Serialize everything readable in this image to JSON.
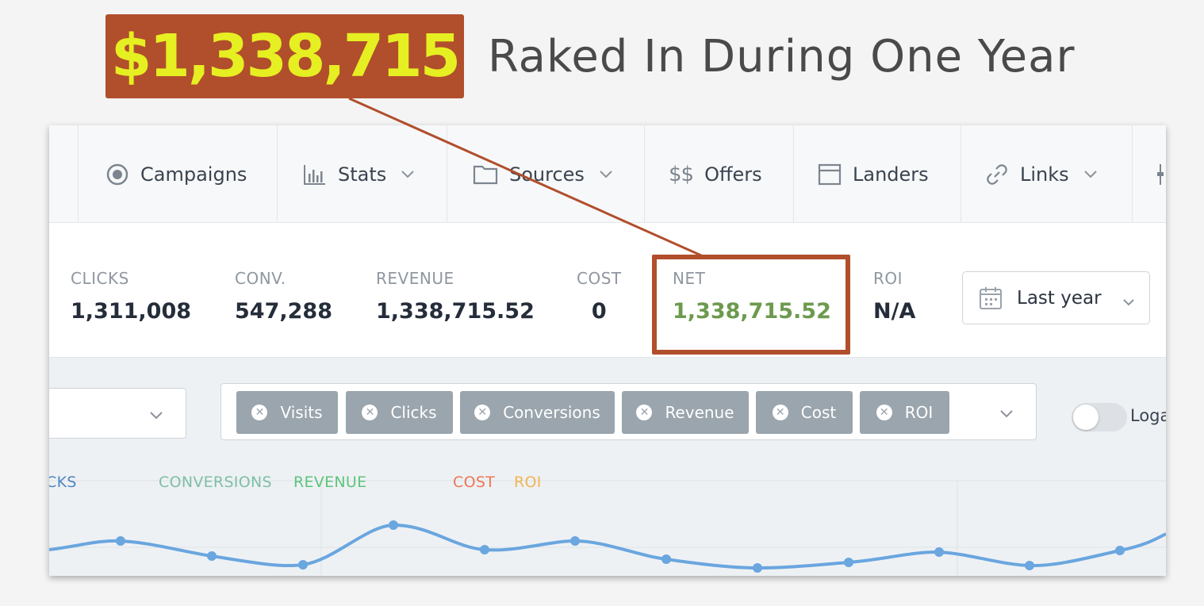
{
  "headline": {
    "amount": "$1,338,715",
    "text": "Raked In During One Year"
  },
  "nav": {
    "items": [
      {
        "label": "Campaigns",
        "icon": "target-icon"
      },
      {
        "label": "Stats",
        "icon": "bar-chart-icon",
        "dropdown": true
      },
      {
        "label": "Sources",
        "icon": "folder-icon",
        "dropdown": true
      },
      {
        "label": "Offers",
        "icon": "dollar-icon"
      },
      {
        "label": "Landers",
        "icon": "window-icon"
      },
      {
        "label": "Links",
        "icon": "link-icon",
        "dropdown": true
      }
    ],
    "offers_icon_text": "$$"
  },
  "stats": {
    "clicks": {
      "label": "CLICKS",
      "value": "1,311,008"
    },
    "conv": {
      "label": "CONV.",
      "value": "547,288"
    },
    "revenue": {
      "label": "REVENUE",
      "value": "1,338,715.52"
    },
    "cost": {
      "label": "COST",
      "value": "0"
    },
    "net": {
      "label": "NET",
      "value": "1,338,715.52"
    },
    "roi": {
      "label": "ROI",
      "value": "N/A"
    },
    "date_range": "Last year"
  },
  "filters": {
    "tags": [
      "Visits",
      "Clicks",
      "Conversions",
      "Revenue",
      "Cost",
      "ROI"
    ],
    "toggle_label": "Loga"
  },
  "chart": {
    "legend": [
      {
        "label": "CKS",
        "color": "#4f87c0"
      },
      {
        "label": "CONVERSIONS",
        "color": "#7fbfa4"
      },
      {
        "label": "REVENUE",
        "color": "#5cc57a"
      },
      {
        "label": "COST",
        "color": "#ee7656"
      },
      {
        "label": "ROI",
        "color": "#f2b552"
      }
    ],
    "line_color": "#6aa6df"
  },
  "colors": {
    "accent": "#b14e2c",
    "headline_amount": "#e6ef21",
    "net_value": "#6c9a4e"
  }
}
